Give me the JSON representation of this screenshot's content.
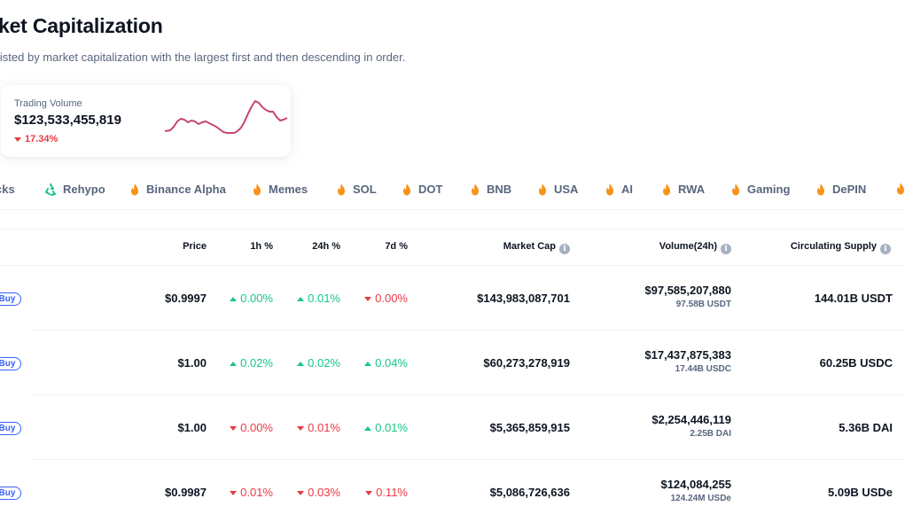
{
  "header": {
    "title": "ket Capitalization",
    "subtitle": "listed by market capitalization with the largest first and then descending in order."
  },
  "volume_card": {
    "label": "Trading Volume",
    "value": "$123,533,455,819",
    "change": "17.34%",
    "change_direction": "down",
    "sparkline_color": "#c2466f"
  },
  "tags": [
    {
      "label": "cks",
      "icon": "none"
    },
    {
      "label": "Rehypo",
      "icon": "recycle-icon"
    },
    {
      "label": "Binance Alpha",
      "icon": "fire-icon"
    },
    {
      "label": "Memes",
      "icon": "fire-icon"
    },
    {
      "label": "SOL",
      "icon": "fire-icon"
    },
    {
      "label": "DOT",
      "icon": "fire-icon"
    },
    {
      "label": "BNB",
      "icon": "fire-icon"
    },
    {
      "label": "USA",
      "icon": "fire-icon"
    },
    {
      "label": "AI",
      "icon": "fire-icon"
    },
    {
      "label": "RWA",
      "icon": "fire-icon"
    },
    {
      "label": "Gaming",
      "icon": "fire-icon"
    },
    {
      "label": "DePIN",
      "icon": "fire-icon"
    },
    {
      "label": "",
      "icon": "fire-icon"
    }
  ],
  "table": {
    "columns": {
      "price": "Price",
      "h1": "1h %",
      "h24": "24h %",
      "d7": "7d %",
      "market_cap": "Market Cap",
      "volume": "Volume(24h)",
      "supply": "Circulating Supply"
    },
    "buy_label": "Buy",
    "rows": [
      {
        "price": "$0.9997",
        "h1": "0.00%",
        "h1_dir": "up",
        "h24": "0.01%",
        "h24_dir": "up",
        "d7": "0.00%",
        "d7_dir": "down",
        "market_cap": "$143,983,087,701",
        "volume": "$97,585,207,880",
        "volume_sub": "97.58B USDT",
        "supply": "144.01B USDT"
      },
      {
        "price": "$1.00",
        "h1": "0.02%",
        "h1_dir": "up",
        "h24": "0.02%",
        "h24_dir": "up",
        "d7": "0.04%",
        "d7_dir": "up",
        "market_cap": "$60,273,278,919",
        "volume": "$17,437,875,383",
        "volume_sub": "17.44B USDC",
        "supply": "60.25B USDC"
      },
      {
        "price": "$1.00",
        "h1": "0.00%",
        "h1_dir": "down",
        "h24": "0.01%",
        "h24_dir": "down",
        "d7": "0.01%",
        "d7_dir": "up",
        "market_cap": "$5,365,859,915",
        "volume": "$2,254,446,119",
        "volume_sub": "2.25B DAI",
        "supply": "5.36B DAI"
      },
      {
        "price": "$0.9987",
        "h1": "0.01%",
        "h1_dir": "down",
        "h24": "0.03%",
        "h24_dir": "down",
        "d7": "0.11%",
        "d7_dir": "down",
        "market_cap": "$5,086,726,636",
        "volume": "$124,084,255",
        "volume_sub": "124.24M USDe",
        "supply": "5.09B USDe"
      }
    ]
  },
  "colors": {
    "up": "#16c784",
    "down": "#ea3943",
    "accent": "#3861fb",
    "fire": "#f7931a",
    "recycle": "#16c784"
  }
}
